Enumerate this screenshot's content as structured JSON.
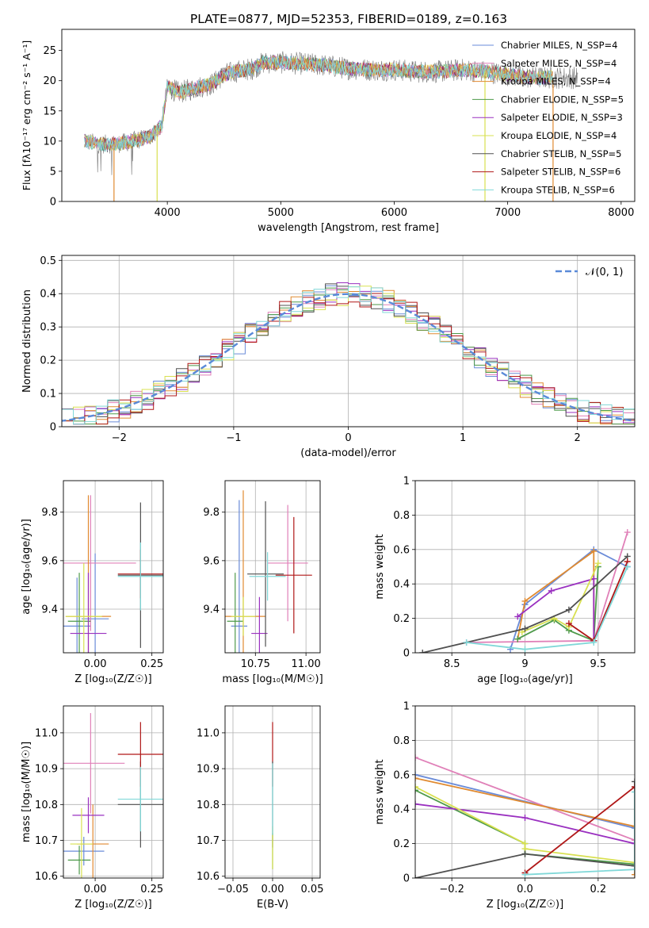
{
  "figure_title": "PLATE=0877, MJD=52353, FIBERID=0189, z=0.163",
  "colors": {
    "series": [
      "#6a8bd8",
      "#e080b8",
      "#e08a30",
      "#4e9a4a",
      "#9a30c0",
      "#d8e050",
      "#505050",
      "#b01818",
      "#80d8d8"
    ],
    "gaussian": "#5a8ad8",
    "grid": "#b0b0b0"
  },
  "chart_data": [
    {
      "id": "spectrum",
      "type": "line",
      "title": "PLATE=0877, MJD=52353, FIBERID=0189, z=0.163",
      "xlabel": "wavelength [Angstrom, rest frame]",
      "ylabel": "Flux [fλ10⁻¹⁷ erg cm⁻² s⁻¹ A⁻¹]",
      "xlim": [
        3070,
        8120
      ],
      "ylim": [
        0,
        28.5
      ],
      "xticks": [
        4000,
        5000,
        6000,
        7000,
        8000
      ],
      "yticks": [
        0,
        5,
        10,
        15,
        20,
        25
      ],
      "grid": false,
      "legend_position": "top-right",
      "legend": [
        "Chabrier MILES, N_SSP=4",
        "Salpeter MILES, N_SSP=4",
        "Kroupa MILES, N_SSP=4",
        "Chabrier ELODIE, N_SSP=5",
        "Salpeter ELODIE, N_SSP=3",
        "Kroupa ELODIE, N_SSP=4",
        "Chabrier STELIB, N_SSP=5",
        "Salpeter STELIB, N_SSP=6",
        "Kroupa STELIB, N_SSP=6"
      ],
      "data_trend": {
        "x": [
          3270,
          3400,
          3550,
          3700,
          3850,
          3950,
          4000,
          4100,
          4250,
          4400,
          4500,
          4600,
          4750,
          4850,
          5000,
          5200,
          5400,
          5600,
          5800,
          6000,
          6200,
          6400,
          6600,
          6800,
          7000,
          7200,
          7400,
          7600
        ],
        "y": [
          10,
          9.5,
          9.5,
          10,
          10.8,
          12.5,
          19,
          18,
          18.8,
          19.5,
          21,
          21.5,
          22,
          23,
          23,
          22.8,
          22.5,
          22,
          21.8,
          21.8,
          21.5,
          21.5,
          21.8,
          21.5,
          21,
          20.5,
          20.5,
          20.5
        ]
      },
      "model_range": [
        3270,
        7400
      ],
      "dips": [
        {
          "x": 3530,
          "model": "Kroupa MILES"
        },
        {
          "x": 3910,
          "model": "Kroupa ELODIE"
        },
        {
          "x": 6800,
          "model": "Kroupa ELODIE"
        },
        {
          "x": 7400,
          "model": "Kroupa MILES"
        }
      ]
    },
    {
      "id": "residual_hist",
      "type": "step",
      "xlabel": "(data-model)/error",
      "ylabel": "Normed distribution",
      "xlim": [
        -2.5,
        2.5
      ],
      "ylim": [
        0,
        0.515
      ],
      "xticks": [
        -2,
        -1,
        0,
        1,
        2
      ],
      "yticks": [
        0,
        0.1,
        0.2,
        0.3,
        0.4,
        0.5
      ],
      "grid": true,
      "bin_width": 0.1,
      "legend_position": "top-right",
      "gaussian_label": "𝒩(0, 1)",
      "gaussian_linestyle": "dashed"
    },
    {
      "id": "age_vs_Z",
      "type": "errorbar",
      "xlabel": "Z [log₁₀(Z/Z☉)]",
      "ylabel": "age  [log₁₀(age/yr)]",
      "xlim": [
        -0.14,
        0.3
      ],
      "ylim": [
        9.22,
        9.93
      ],
      "xticks": [
        0.0,
        0.25
      ],
      "xtick_labels": [
        "0.00",
        "0.25"
      ],
      "yticks": [
        9.4,
        9.6,
        9.8
      ],
      "yticklabels": [
        "9.4",
        "9.6",
        "9.8"
      ],
      "grid": true,
      "points": [
        {
          "series": 0,
          "x": -0.08,
          "xerr": 0.06,
          "y": 9.33,
          "yerr": 0.2
        },
        {
          "series": 0,
          "x": 0.0,
          "xerr": 0.06,
          "y": 9.36,
          "yerr": 0.27
        },
        {
          "series": 1,
          "x": -0.02,
          "xerr": 0.2,
          "y": 9.59,
          "yerr": 0.28
        },
        {
          "series": 2,
          "x": -0.03,
          "xerr": 0.1,
          "y": 9.37,
          "yerr": 0.5
        },
        {
          "series": 3,
          "x": -0.07,
          "xerr": 0.05,
          "y": 9.35,
          "yerr": 0.2
        },
        {
          "series": 4,
          "x": -0.03,
          "xerr": 0.08,
          "y": 9.3,
          "yerr": 0.25
        },
        {
          "series": 5,
          "x": -0.05,
          "xerr": 0.08,
          "y": 9.37,
          "yerr": 0.22
        },
        {
          "series": 6,
          "x": 0.2,
          "xerr": 0.1,
          "y": 9.54,
          "yerr": 0.3
        },
        {
          "series": 7,
          "x": 0.2,
          "xerr": 0.1,
          "y": 9.545,
          "yerr": 0.1
        },
        {
          "series": 8,
          "x": 0.2,
          "xerr": 0.1,
          "y": 9.535,
          "yerr": 0.14
        }
      ]
    },
    {
      "id": "age_vs_mass",
      "type": "errorbar",
      "xlabel": "mass [log₁₀(M/M☉)]",
      "xlim": [
        10.6,
        11.07
      ],
      "ylim": [
        9.22,
        9.93
      ],
      "xticks": [
        10.75,
        11.0
      ],
      "xtick_labels": [
        "10.75",
        "11.00"
      ],
      "yticks": [
        9.4,
        9.6,
        9.8
      ],
      "yticklabels": [
        "9.4",
        "9.6",
        "9.8"
      ],
      "grid": true,
      "points": [
        {
          "series": 0,
          "x": 10.67,
          "xerr": 0.04,
          "y": 9.33,
          "yerr": 0.52
        },
        {
          "series": 1,
          "x": 10.91,
          "xerr": 0.1,
          "y": 9.59,
          "yerr": 0.24
        },
        {
          "series": 2,
          "x": 10.69,
          "xerr": 0.11,
          "y": 9.37,
          "yerr": 0.52
        },
        {
          "series": 3,
          "x": 10.65,
          "xerr": 0.04,
          "y": 9.35,
          "yerr": 0.2
        },
        {
          "series": 4,
          "x": 10.77,
          "xerr": 0.04,
          "y": 9.3,
          "yerr": 0.15
        },
        {
          "series": 5,
          "x": 10.69,
          "xerr": 0.06,
          "y": 9.37,
          "yerr": 0.08
        },
        {
          "series": 6,
          "x": 10.8,
          "xerr": 0.09,
          "y": 9.545,
          "yerr": 0.3
        },
        {
          "series": 7,
          "x": 10.94,
          "xerr": 0.09,
          "y": 9.54,
          "yerr": 0.24
        },
        {
          "series": 8,
          "x": 10.81,
          "xerr": 0.09,
          "y": 9.535,
          "yerr": 0.1
        }
      ]
    },
    {
      "id": "mass_weight_vs_age",
      "type": "line",
      "xlabel": "age  [log₁₀(age/yr)]",
      "ylabel": "mass weight",
      "xlim": [
        8.25,
        9.75
      ],
      "ylim": [
        0,
        1.0
      ],
      "xticks": [
        8.5,
        9.0,
        9.5
      ],
      "yticks": [
        0,
        0.2,
        0.4,
        0.6,
        0.8,
        1.0
      ],
      "grid": true,
      "series": [
        {
          "color": 0,
          "x": [
            8.9,
            9.0,
            9.47,
            9.7
          ],
          "y": [
            0.02,
            0.28,
            0.6,
            0.5
          ]
        },
        {
          "color": 1,
          "x": [
            8.6,
            9.47,
            9.7
          ],
          "y": [
            0.06,
            0.07,
            0.7
          ]
        },
        {
          "color": 2,
          "x": [
            8.95,
            9.0,
            9.47,
            9.47
          ],
          "y": [
            0.08,
            0.3,
            0.59,
            0.07
          ]
        },
        {
          "color": 3,
          "x": [
            8.95,
            9.2,
            9.3,
            9.47,
            9.5
          ],
          "y": [
            0.08,
            0.19,
            0.13,
            0.07,
            0.5
          ]
        },
        {
          "color": 4,
          "x": [
            8.95,
            9.18,
            9.47,
            9.47
          ],
          "y": [
            0.21,
            0.36,
            0.43,
            0.07
          ]
        },
        {
          "color": 5,
          "x": [
            8.98,
            9.2,
            9.3,
            9.5
          ],
          "y": [
            0.12,
            0.2,
            0.15,
            0.52
          ]
        },
        {
          "color": 6,
          "x": [
            8.3,
            9.0,
            9.3,
            9.7
          ],
          "y": [
            0.0,
            0.14,
            0.25,
            0.56
          ]
        },
        {
          "color": 7,
          "x": [
            9.3,
            9.47,
            9.7
          ],
          "y": [
            0.17,
            0.07,
            0.53
          ]
        },
        {
          "color": 8,
          "x": [
            8.6,
            9.0,
            9.47,
            9.7
          ],
          "y": [
            0.06,
            0.02,
            0.06,
            0.5
          ]
        }
      ]
    },
    {
      "id": "mass_vs_Z",
      "type": "errorbar",
      "xlabel": "Z [log₁₀(Z/Z☉)]",
      "ylabel": "mass [log₁₀(M/M☉)]",
      "xlim": [
        -0.14,
        0.3
      ],
      "ylim": [
        10.595,
        11.075
      ],
      "xticks": [
        0.0,
        0.25
      ],
      "xtick_labels": [
        "0.00",
        "0.25"
      ],
      "yticks": [
        10.6,
        10.7,
        10.8,
        10.9,
        11.0
      ],
      "yticklabels": [
        "10.6",
        "10.7",
        "10.8",
        "10.9",
        "11.0"
      ],
      "grid": true,
      "points": [
        {
          "series": 0,
          "x": -0.05,
          "xerr": 0.09,
          "y": 10.67,
          "yerr": 0.04
        },
        {
          "series": 1,
          "x": -0.02,
          "xerr": 0.15,
          "y": 10.915,
          "yerr": 0.14
        },
        {
          "series": 2,
          "x": -0.01,
          "xerr": 0.07,
          "y": 10.69,
          "yerr": 0.11
        },
        {
          "series": 3,
          "x": -0.07,
          "xerr": 0.05,
          "y": 10.645,
          "yerr": 0.04
        },
        {
          "series": 4,
          "x": -0.03,
          "xerr": 0.07,
          "y": 10.77,
          "yerr": 0.05
        },
        {
          "series": 5,
          "x": -0.06,
          "xerr": 0.05,
          "y": 10.69,
          "yerr": 0.1
        },
        {
          "series": 6,
          "x": 0.2,
          "xerr": 0.1,
          "y": 10.8,
          "yerr": 0.12
        },
        {
          "series": 7,
          "x": 0.2,
          "xerr": 0.1,
          "y": 10.94,
          "yerr": 0.09
        },
        {
          "series": 8,
          "x": 0.2,
          "xerr": 0.1,
          "y": 10.815,
          "yerr": 0.09
        }
      ]
    },
    {
      "id": "mass_vs_ebv",
      "type": "errorbar",
      "xlabel": "E(B-V)",
      "xlim": [
        -0.06,
        0.06
      ],
      "ylim": [
        10.595,
        11.075
      ],
      "xticks": [
        -0.05,
        0.0,
        0.05
      ],
      "xtick_labels": [
        "−0.05",
        "0.00",
        "0.05"
      ],
      "yticks": [
        10.6,
        10.7,
        10.8,
        10.9,
        11.0
      ],
      "yticklabels": [
        "10.6",
        "10.7",
        "10.8",
        "10.9",
        "11.0"
      ],
      "grid": true,
      "points": [
        {
          "series": 7,
          "x": 0.0,
          "xerr": 0.0,
          "y": 10.94,
          "yerr": 0.09
        },
        {
          "series": 6,
          "x": 0.0,
          "xerr": 0.0,
          "y": 10.8,
          "yerr": 0.12
        },
        {
          "series": 3,
          "x": 0.0,
          "xerr": 0.0,
          "y": 10.67,
          "yerr": 0.05
        },
        {
          "series": 5,
          "x": 0.0,
          "xerr": 0.0,
          "y": 10.68,
          "yerr": 0.06
        },
        {
          "series": 8,
          "x": 0.0,
          "xerr": 0.0,
          "y": 10.815,
          "yerr": 0.1
        }
      ]
    },
    {
      "id": "mass_weight_vs_Z",
      "type": "line",
      "xlabel": "Z [log₁₀(Z/Z☉)]",
      "ylabel": "mass weight",
      "xlim": [
        -0.3,
        0.3
      ],
      "ylim": [
        0,
        1.0
      ],
      "xticks": [
        -0.2,
        0.0,
        0.2
      ],
      "xtick_labels": [
        "−0.2",
        "0.0",
        "0.2"
      ],
      "yticks": [
        0,
        0.2,
        0.4,
        0.6,
        0.8,
        1.0
      ],
      "grid": true,
      "series": [
        {
          "color": 0,
          "x": [
            -0.3,
            0.3
          ],
          "y": [
            0.6,
            0.29
          ]
        },
        {
          "color": 1,
          "x": [
            -0.3,
            0.3
          ],
          "y": [
            0.7,
            0.22
          ]
        },
        {
          "color": 2,
          "x": [
            -0.3,
            0.3,
            0.3
          ],
          "y": [
            0.58,
            0.3,
            0.02
          ]
        },
        {
          "color": 3,
          "x": [
            -0.3,
            0.0,
            0.0,
            0.3
          ],
          "y": [
            0.51,
            0.2,
            0.14,
            0.08
          ]
        },
        {
          "color": 4,
          "x": [
            -0.3,
            0.0,
            0.3
          ],
          "y": [
            0.43,
            0.35,
            0.2
          ]
        },
        {
          "color": 5,
          "x": [
            -0.3,
            0.0,
            0.0,
            0.3
          ],
          "y": [
            0.53,
            0.2,
            0.17,
            0.09
          ]
        },
        {
          "color": 6,
          "x": [
            -0.3,
            0.0,
            0.3,
            0.3
          ],
          "y": [
            0.0,
            0.14,
            0.07,
            0.56
          ]
        },
        {
          "color": 7,
          "x": [
            0.0,
            0.3
          ],
          "y": [
            0.03,
            0.53
          ]
        },
        {
          "color": 8,
          "x": [
            0.0,
            0.3,
            0.3
          ],
          "y": [
            0.02,
            0.05,
            0.5
          ]
        }
      ]
    }
  ]
}
